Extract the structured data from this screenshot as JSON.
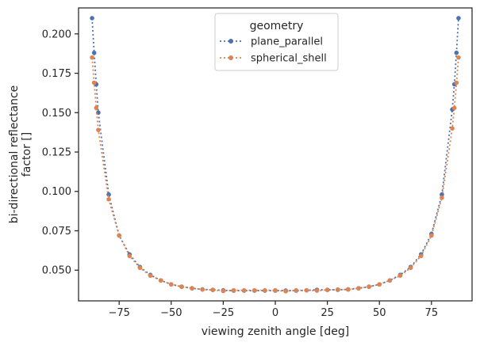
{
  "chart_data": {
    "type": "line",
    "title": "",
    "xlabel": "viewing zenith angle [deg]",
    "ylabel_lines": [
      "bi-directional reflectance",
      "factor []"
    ],
    "xlim": [
      -94.5,
      94.5
    ],
    "ylim": [
      0.0305,
      0.2165
    ],
    "xticks": [
      -75,
      -50,
      -25,
      0,
      25,
      50,
      75
    ],
    "xtick_labels": [
      "−75",
      "−50",
      "−25",
      "0",
      "25",
      "50",
      "75"
    ],
    "yticks": [
      0.05,
      0.075,
      0.1,
      0.125,
      0.15,
      0.175,
      0.2
    ],
    "ytick_labels": [
      "0.050",
      "0.075",
      "0.100",
      "0.125",
      "0.150",
      "0.175",
      "0.200"
    ],
    "grid": false,
    "legend": {
      "title": "geometry",
      "placement": "upper center"
    },
    "series": [
      {
        "name": "plane_parallel",
        "color": "#4c72b0",
        "linestyle": "dotted",
        "marker": "circle",
        "x": [
          -88,
          -87,
          -86,
          -85,
          -80,
          -75,
          -70,
          -65,
          -60,
          -55,
          -50,
          -45,
          -40,
          -35,
          -30,
          -25,
          -20,
          -15,
          -10,
          -5,
          0,
          5,
          10,
          15,
          20,
          25,
          30,
          35,
          40,
          45,
          50,
          55,
          60,
          65,
          70,
          75,
          80,
          85,
          86,
          87,
          88
        ],
        "y": [
          0.21,
          0.188,
          0.168,
          0.15,
          0.098,
          0.072,
          0.06,
          0.052,
          0.047,
          0.0435,
          0.041,
          0.0395,
          0.0385,
          0.0378,
          0.0375,
          0.0372,
          0.037,
          0.037,
          0.037,
          0.037,
          0.037,
          0.037,
          0.037,
          0.0372,
          0.0375,
          0.0375,
          0.0375,
          0.0378,
          0.0385,
          0.0395,
          0.041,
          0.0435,
          0.047,
          0.052,
          0.06,
          0.073,
          0.098,
          0.152,
          0.168,
          0.188,
          0.21
        ]
      },
      {
        "name": "spherical_shell",
        "color": "#dd8452",
        "linestyle": "dotted",
        "marker": "circle",
        "x": [
          -88,
          -87,
          -86,
          -85,
          -80,
          -75,
          -70,
          -65,
          -60,
          -55,
          -50,
          -45,
          -40,
          -35,
          -30,
          -25,
          -20,
          -15,
          -10,
          -5,
          0,
          5,
          10,
          15,
          20,
          25,
          30,
          35,
          40,
          45,
          50,
          55,
          60,
          65,
          70,
          75,
          80,
          85,
          86,
          87,
          88
        ],
        "y": [
          0.185,
          0.169,
          0.153,
          0.139,
          0.095,
          0.072,
          0.059,
          0.0515,
          0.0465,
          0.0435,
          0.041,
          0.0395,
          0.0385,
          0.0377,
          0.0374,
          0.0368,
          0.0372,
          0.0372,
          0.0372,
          0.0372,
          0.0372,
          0.0366,
          0.0372,
          0.0372,
          0.037,
          0.0374,
          0.0377,
          0.0377,
          0.0385,
          0.0395,
          0.041,
          0.0435,
          0.0465,
          0.0515,
          0.059,
          0.072,
          0.096,
          0.14,
          0.153,
          0.169,
          0.185
        ]
      }
    ]
  }
}
